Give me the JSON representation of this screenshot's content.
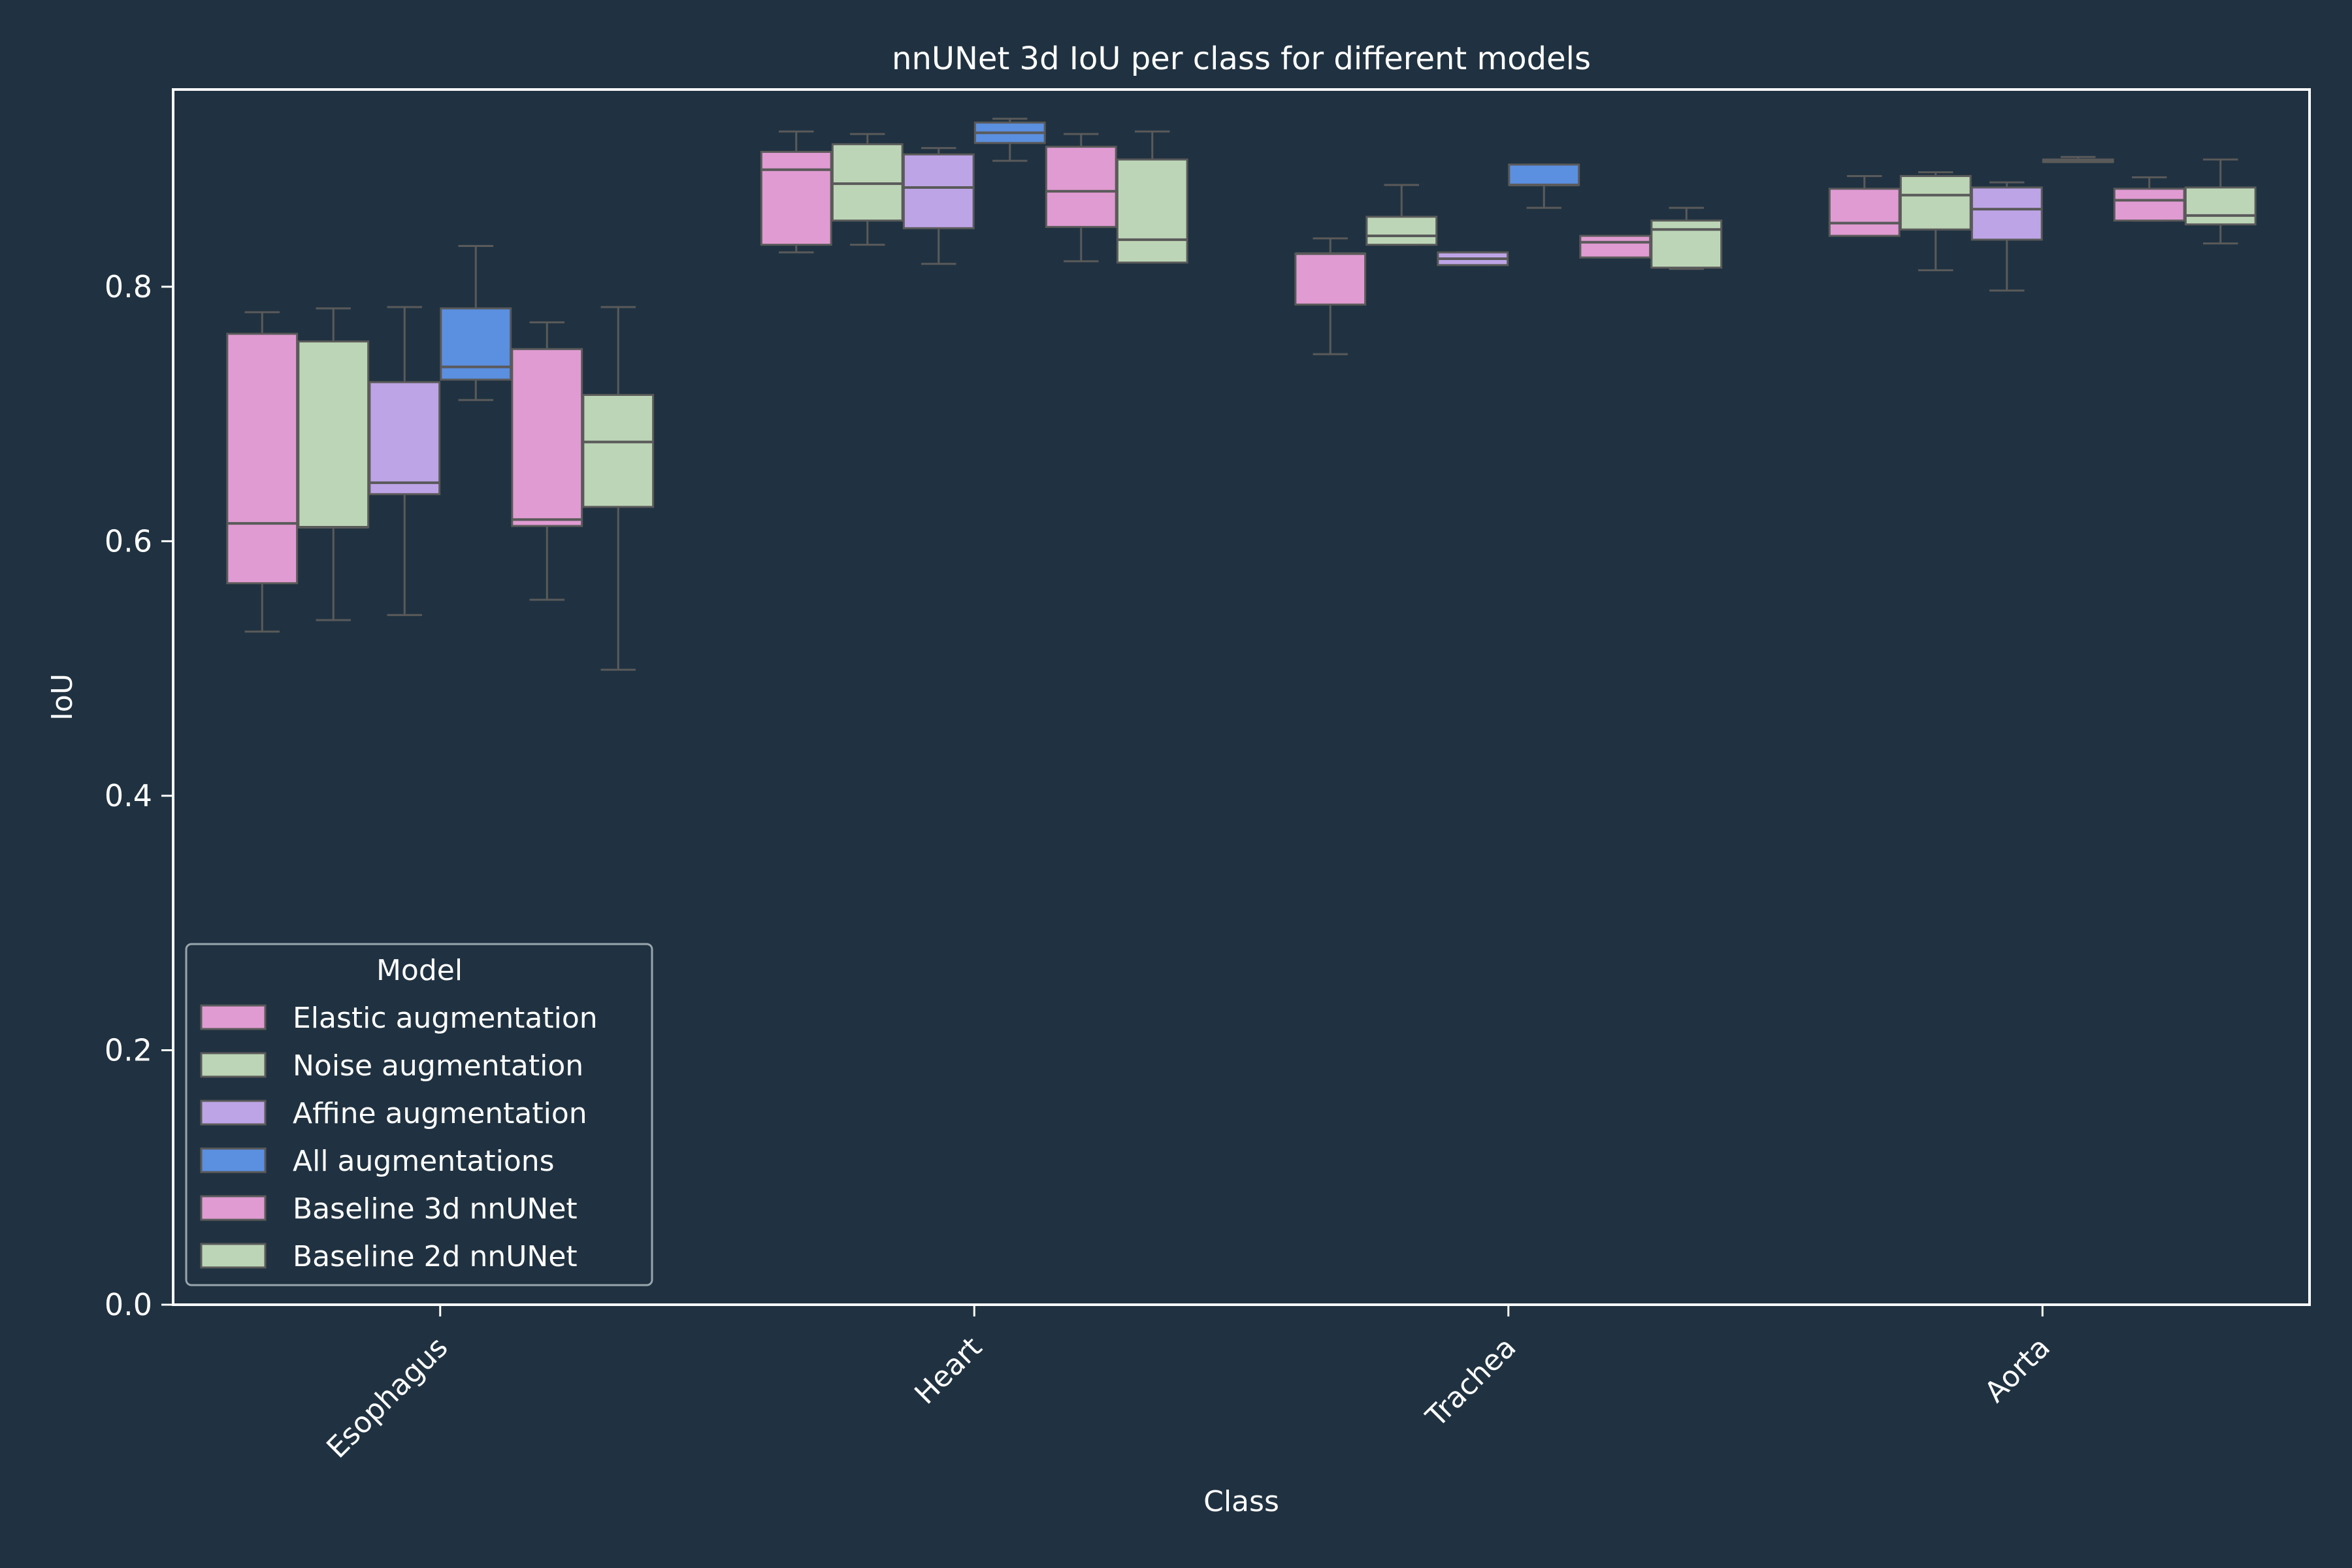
{
  "chart_data": {
    "type": "box",
    "title": "nnUNet 3d IoU per class for different models",
    "xlabel": "Class",
    "ylabel": "IoU",
    "ylim": [
      0,
      0.955
    ],
    "yticks": [
      0.0,
      0.2,
      0.4,
      0.6,
      0.8
    ],
    "ytick_labels": [
      "0.0",
      "0.2",
      "0.4",
      "0.6",
      "0.8"
    ],
    "categories": [
      "Esophagus",
      "Heart",
      "Trachea",
      "Aorta"
    ],
    "legend": {
      "title": "Model",
      "placement": "lower-left"
    },
    "grid": false,
    "colors": {
      "background": "#203241",
      "box_edge": "#5a5a5a",
      "axes": "#ffffff"
    },
    "series": [
      {
        "name": "Elastic augmentation",
        "color": "#e09bd2",
        "boxes": [
          {
            "whislo": 0.529,
            "q1": 0.567,
            "med": 0.614,
            "q3": 0.763,
            "whishi": 0.78
          },
          {
            "whislo": 0.827,
            "q1": 0.833,
            "med": 0.892,
            "q3": 0.906,
            "whishi": 0.922
          },
          {
            "whislo": 0.747,
            "q1": 0.786,
            "med": 0.826,
            "q3": 0.826,
            "whishi": 0.838
          },
          {
            "whislo": 0.84,
            "q1": 0.84,
            "med": 0.85,
            "q3": 0.877,
            "whishi": 0.887
          }
        ]
      },
      {
        "name": "Noise augmentation",
        "color": "#bcd5b6",
        "boxes": [
          {
            "whislo": 0.538,
            "q1": 0.611,
            "med": 0.611,
            "q3": 0.757,
            "whishi": 0.783
          },
          {
            "whislo": 0.833,
            "q1": 0.852,
            "med": 0.881,
            "q3": 0.912,
            "whishi": 0.92
          },
          {
            "whislo": 0.833,
            "q1": 0.833,
            "med": 0.84,
            "q3": 0.855,
            "whishi": 0.88
          },
          {
            "whislo": 0.813,
            "q1": 0.845,
            "med": 0.872,
            "q3": 0.887,
            "whishi": 0.89
          }
        ]
      },
      {
        "name": "Affine augmentation",
        "color": "#bda4e6",
        "boxes": [
          {
            "whislo": 0.542,
            "q1": 0.637,
            "med": 0.646,
            "q3": 0.725,
            "whishi": 0.784
          },
          {
            "whislo": 0.818,
            "q1": 0.846,
            "med": 0.878,
            "q3": 0.904,
            "whishi": 0.909
          },
          {
            "whislo": 0.817,
            "q1": 0.817,
            "med": 0.822,
            "q3": 0.827,
            "whishi": 0.827
          },
          {
            "whislo": 0.797,
            "q1": 0.837,
            "med": 0.861,
            "q3": 0.878,
            "whishi": 0.882
          }
        ]
      },
      {
        "name": "All augmentations",
        "color": "#5b8fe0",
        "boxes": [
          {
            "whislo": 0.711,
            "q1": 0.727,
            "med": 0.737,
            "q3": 0.783,
            "whishi": 0.832
          },
          {
            "whislo": 0.899,
            "q1": 0.913,
            "med": 0.921,
            "q3": 0.929,
            "whishi": 0.932
          },
          {
            "whislo": 0.862,
            "q1": 0.88,
            "med": 0.88,
            "q3": 0.896,
            "whishi": 0.896
          },
          {
            "whislo": 0.898,
            "q1": 0.898,
            "med": 0.899,
            "q3": 0.9,
            "whishi": 0.902
          }
        ]
      },
      {
        "name": "Baseline 3d nnUNet",
        "color": "#e09bd2",
        "boxes": [
          {
            "whislo": 0.554,
            "q1": 0.612,
            "med": 0.617,
            "q3": 0.751,
            "whishi": 0.772
          },
          {
            "whislo": 0.82,
            "q1": 0.847,
            "med": 0.875,
            "q3": 0.91,
            "whishi": 0.92
          },
          {
            "whislo": 0.823,
            "q1": 0.823,
            "med": 0.835,
            "q3": 0.84,
            "whishi": 0.84
          },
          {
            "whislo": 0.852,
            "q1": 0.852,
            "med": 0.868,
            "q3": 0.877,
            "whishi": 0.886
          }
        ]
      },
      {
        "name": "Baseline 2d nnUNet",
        "color": "#bcd5b6",
        "boxes": [
          {
            "whislo": 0.499,
            "q1": 0.627,
            "med": 0.678,
            "q3": 0.715,
            "whishi": 0.784
          },
          {
            "whislo": 0.819,
            "q1": 0.819,
            "med": 0.837,
            "q3": 0.9,
            "whishi": 0.922
          },
          {
            "whislo": 0.814,
            "q1": 0.815,
            "med": 0.845,
            "q3": 0.852,
            "whishi": 0.862
          },
          {
            "whislo": 0.834,
            "q1": 0.849,
            "med": 0.856,
            "q3": 0.878,
            "whishi": 0.9
          }
        ]
      }
    ]
  }
}
